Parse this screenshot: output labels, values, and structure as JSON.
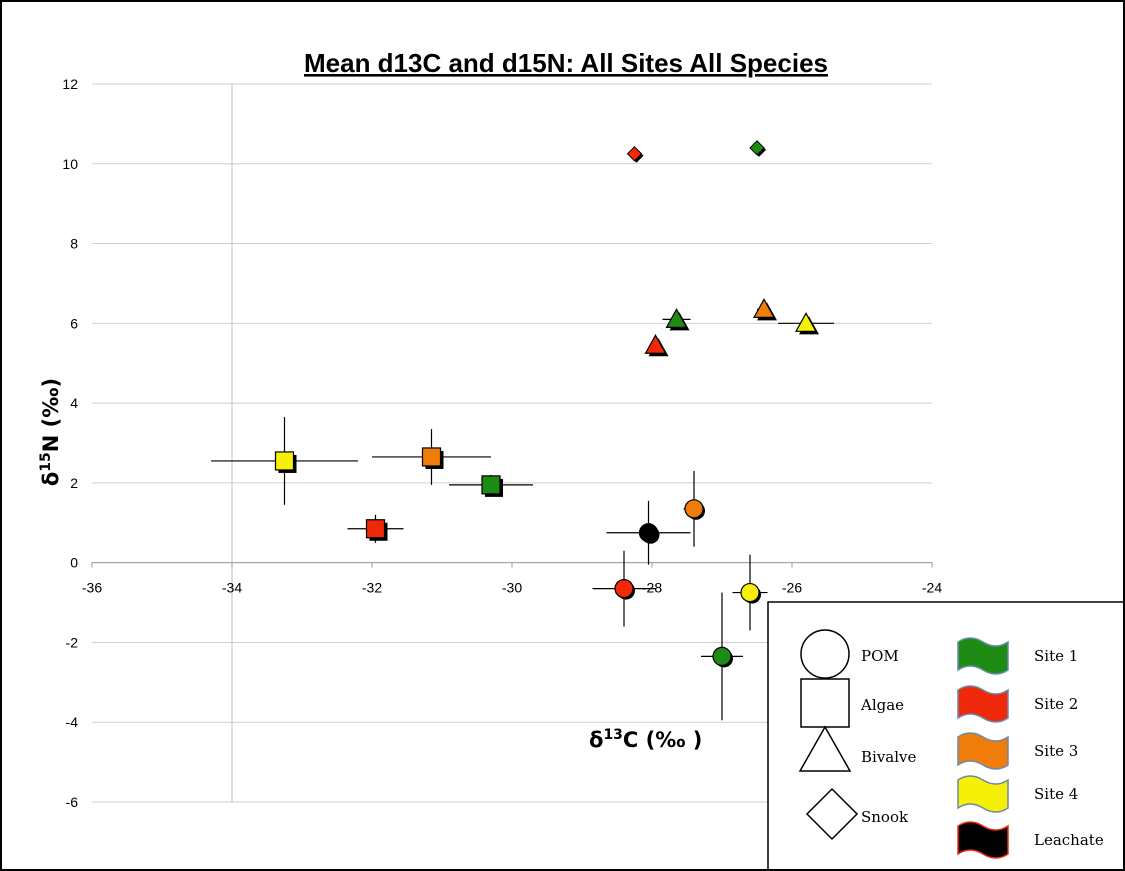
{
  "chart_data": {
    "type": "scatter",
    "title": "Mean d13C and d15N:  All Sites All Species",
    "xlabel": "δ13C (‰ )",
    "ylabel": "δ15N (‰)",
    "xlim": [
      -36,
      -24
    ],
    "ylim": [
      -6,
      12
    ],
    "x_ticks": [
      -36,
      -34,
      -32,
      -30,
      -28,
      -26,
      -24
    ],
    "y_ticks": [
      -6,
      -4,
      -2,
      0,
      2,
      4,
      6,
      8,
      10,
      12
    ],
    "grid": "horizontal",
    "site_colors": {
      "Site 1": "#1e8c14",
      "Site 2": "#f0290a",
      "Site 3": "#f07d0a",
      "Site 4": "#f5f005",
      "Leachate": "#000000"
    },
    "points": [
      {
        "group": "POM",
        "site": "Site 1",
        "x": -27.0,
        "y": -2.35,
        "xerr": 0.3,
        "yerr": 1.6
      },
      {
        "group": "POM",
        "site": "Site 2",
        "x": -28.4,
        "y": -0.65,
        "xerr": 0.45,
        "yerr": 0.95
      },
      {
        "group": "POM",
        "site": "Site 3",
        "x": -27.4,
        "y": 1.35,
        "xerr": 0.15,
        "yerr": 0.95
      },
      {
        "group": "POM",
        "site": "Site 4",
        "x": -26.6,
        "y": -0.75,
        "xerr": 0.25,
        "yerr": 0.95
      },
      {
        "group": "POM",
        "site": "Leachate",
        "x": -28.05,
        "y": 0.75,
        "xerr": 0.6,
        "yerr": 0.8
      },
      {
        "group": "Algae",
        "site": "Site 1",
        "x": -30.3,
        "y": 1.95,
        "xerr": 0.6,
        "yerr": 0.25
      },
      {
        "group": "Algae",
        "site": "Site 2",
        "x": -31.95,
        "y": 0.85,
        "xerr": 0.4,
        "yerr": 0.35
      },
      {
        "group": "Algae",
        "site": "Site 3",
        "x": -31.15,
        "y": 2.65,
        "xerr": 0.85,
        "yerr": 0.7
      },
      {
        "group": "Algae",
        "site": "Site 4",
        "x": -33.25,
        "y": 2.55,
        "xerr": 1.05,
        "yerr": 1.1
      },
      {
        "group": "Bivalve",
        "site": "Site 1",
        "x": -27.65,
        "y": 6.1,
        "xerr": 0.2,
        "yerr": 0.1
      },
      {
        "group": "Bivalve",
        "site": "Site 2",
        "x": -27.95,
        "y": 5.45,
        "xerr": 0.05,
        "yerr": 0.1
      },
      {
        "group": "Bivalve",
        "site": "Site 3",
        "x": -26.4,
        "y": 6.35,
        "xerr": 0.1,
        "yerr": 0.1
      },
      {
        "group": "Bivalve",
        "site": "Site 4",
        "x": -25.8,
        "y": 6.0,
        "xerr": 0.4,
        "yerr": 0.1
      },
      {
        "group": "Snook",
        "site": "Site 2",
        "x": -28.25,
        "y": 10.25,
        "xerr": 0,
        "yerr": 0
      },
      {
        "group": "Snook",
        "site": "Site 1",
        "x": -26.5,
        "y": 10.4,
        "xerr": 0,
        "yerr": 0
      }
    ],
    "legend": {
      "placement": "bottom-right",
      "shapes": [
        "POM",
        "Algae",
        "Bivalve",
        "Snook"
      ],
      "sites": [
        "Site 1",
        "Site 2",
        "Site 3",
        "Site 4",
        "Leachate"
      ]
    }
  }
}
